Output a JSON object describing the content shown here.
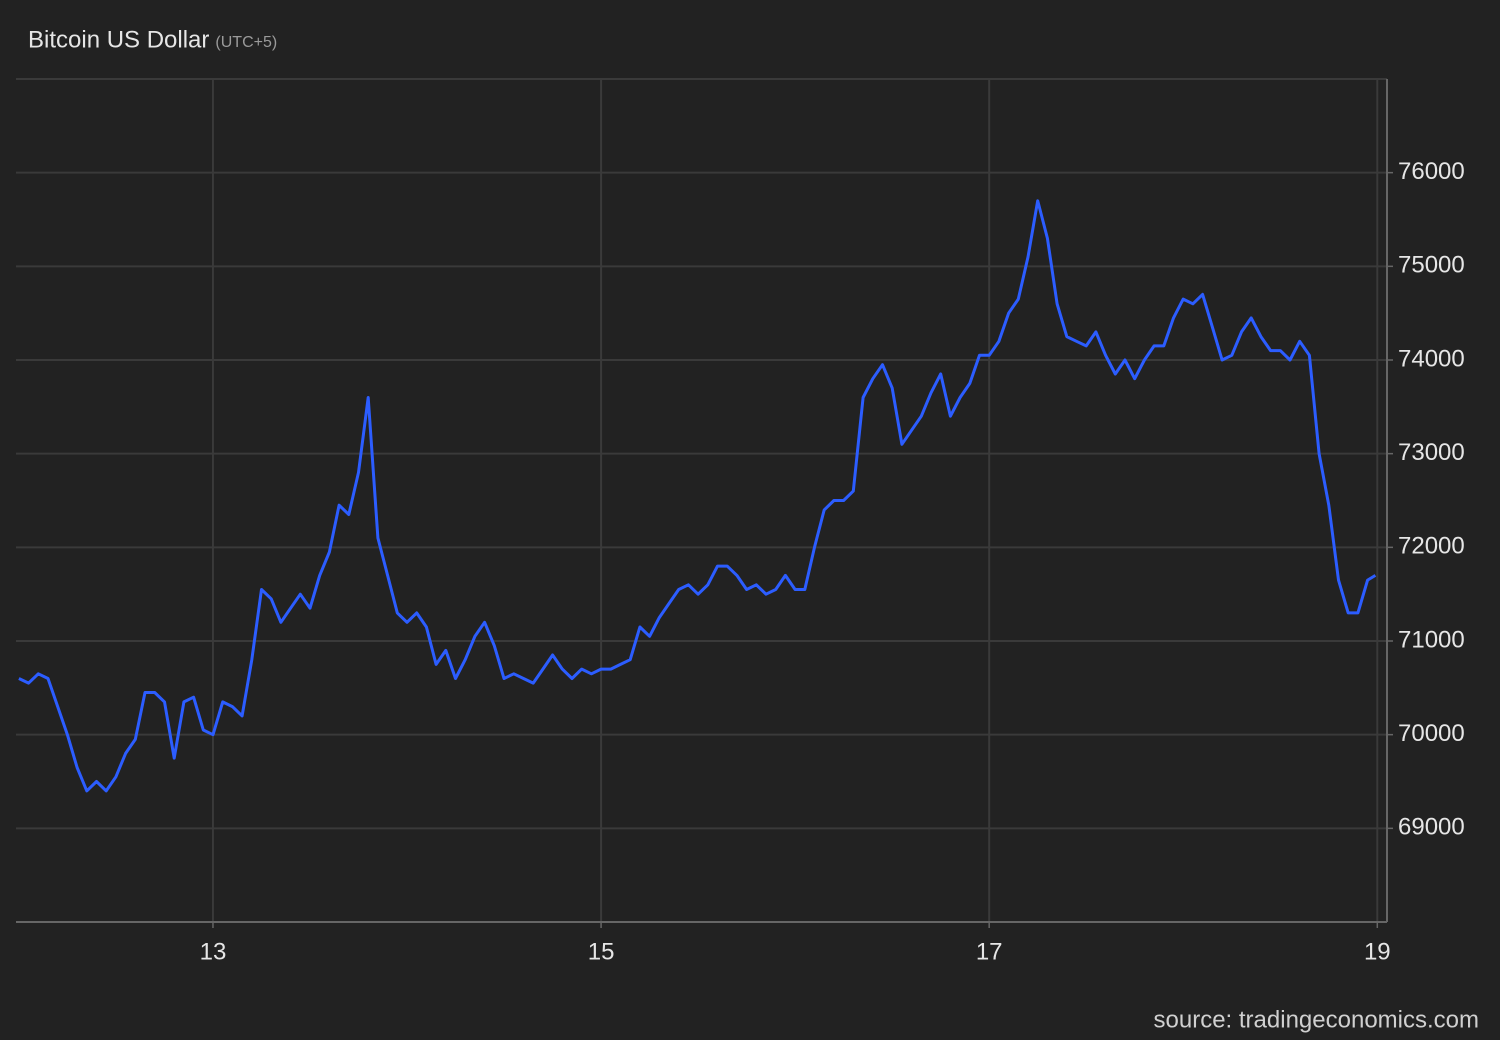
{
  "chart_data": {
    "type": "line",
    "title": "Bitcoin US Dollar",
    "subtitle": "(UTC+5)",
    "source": "source: tradingeconomics.com",
    "xlim": [
      11.985,
      19.05
    ],
    "xticks": [
      13,
      15,
      17,
      19
    ],
    "ylim": [
      68000,
      77000
    ],
    "yticks": [
      69000,
      70000,
      71000,
      72000,
      73000,
      74000,
      75000,
      76000
    ],
    "grid": true,
    "x": [
      12.0,
      12.05,
      12.1,
      12.15,
      12.2,
      12.25,
      12.3,
      12.35,
      12.4,
      12.45,
      12.5,
      12.55,
      12.6,
      12.65,
      12.7,
      12.75,
      12.8,
      12.85,
      12.9,
      12.95,
      13.0,
      13.05,
      13.1,
      13.15,
      13.2,
      13.25,
      13.3,
      13.35,
      13.4,
      13.45,
      13.5,
      13.55,
      13.6,
      13.65,
      13.7,
      13.75,
      13.8,
      13.85,
      13.9,
      13.95,
      14.0,
      14.05,
      14.1,
      14.15,
      14.2,
      14.25,
      14.3,
      14.35,
      14.4,
      14.45,
      14.5,
      14.55,
      14.6,
      14.65,
      14.7,
      14.75,
      14.8,
      14.85,
      14.9,
      14.95,
      15.0,
      15.05,
      15.1,
      15.15,
      15.2,
      15.25,
      15.3,
      15.35,
      15.4,
      15.45,
      15.5,
      15.55,
      15.6,
      15.65,
      15.7,
      15.75,
      15.8,
      15.85,
      15.9,
      15.95,
      16.0,
      16.05,
      16.1,
      16.15,
      16.2,
      16.25,
      16.3,
      16.35,
      16.4,
      16.45,
      16.5,
      16.55,
      16.6,
      16.65,
      16.7,
      16.75,
      16.8,
      16.85,
      16.9,
      16.95,
      17.0,
      17.05,
      17.1,
      17.15,
      17.2,
      17.25,
      17.3,
      17.35,
      17.4,
      17.45,
      17.5,
      17.55,
      17.6,
      17.65,
      17.7,
      17.75,
      17.8,
      17.85,
      17.9,
      17.95,
      18.0,
      18.05,
      18.1,
      18.15,
      18.2,
      18.25,
      18.3,
      18.35,
      18.4,
      18.45,
      18.5,
      18.55,
      18.6,
      18.65,
      18.7,
      18.75,
      18.8,
      18.85,
      18.9,
      18.95,
      18.99
    ],
    "series": [
      {
        "name": "Bitcoin US Dollar",
        "color": "#2c5dff",
        "values": [
          70600,
          70550,
          70650,
          70600,
          70300,
          70000,
          69650,
          69400,
          69500,
          69400,
          69550,
          69800,
          69950,
          70450,
          70450,
          70350,
          69750,
          70350,
          70400,
          70050,
          70000,
          70350,
          70300,
          70200,
          70800,
          71550,
          71450,
          71200,
          71350,
          71500,
          71350,
          71700,
          71950,
          72450,
          72350,
          72800,
          73600,
          72100,
          71700,
          71300,
          71200,
          71300,
          71150,
          70750,
          70900,
          70600,
          70800,
          71050,
          71200,
          70950,
          70600,
          70650,
          70600,
          70550,
          70700,
          70850,
          70700,
          70600,
          70700,
          70650,
          70700,
          70700,
          70750,
          70800,
          71150,
          71050,
          71250,
          71400,
          71550,
          71600,
          71500,
          71600,
          71800,
          71800,
          71700,
          71550,
          71600,
          71500,
          71550,
          71700,
          71550,
          71550,
          72000,
          72400,
          72500,
          72500,
          72600,
          73600,
          73800,
          73950,
          73700,
          73100,
          73250,
          73400,
          73650,
          73850,
          73400,
          73600,
          73750,
          74050,
          74050,
          74200,
          74500,
          74650,
          75100,
          75700,
          75300,
          74600,
          74250,
          74200,
          74150,
          74300,
          74050,
          73850,
          74000,
          73800,
          74000,
          74150,
          74150,
          74450,
          74650,
          74600,
          74700,
          74350,
          74000,
          74050,
          74300,
          74450,
          74250,
          74100,
          74100,
          74000,
          74200,
          74050,
          73000,
          72450,
          71650,
          71300,
          71300,
          71650,
          71700
        ]
      }
    ]
  }
}
